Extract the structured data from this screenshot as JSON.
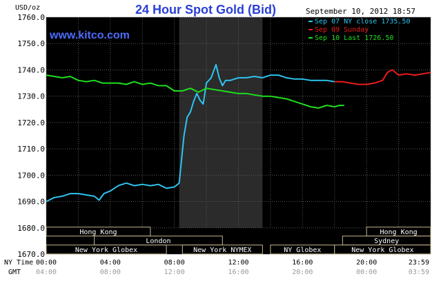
{
  "chart_data": {
    "type": "line",
    "title": "24 Hour Spot Gold (Bid)",
    "ylabel": "USD/oz",
    "brand": "www.kitco.com",
    "timestamp": "September 10, 2012 18:57",
    "ylim": [
      1670,
      1760
    ],
    "yticks": [
      "1760.0",
      "1750.0",
      "1740.0",
      "1730.0",
      "1720.0",
      "1710.0",
      "1700.0",
      "1690.0",
      "1680.0",
      "1670.0"
    ],
    "xlim": [
      0,
      24
    ],
    "x_ticks_ny": [
      "00:00",
      "04:00",
      "08:00",
      "12:00",
      "16:00",
      "20:00",
      "23:59"
    ],
    "x_ticks_gmt": [
      "04:00",
      "08:00",
      "12:00",
      "16:00",
      "20:00",
      "00:00",
      "03:59"
    ],
    "row_label_ny": "NY Time",
    "row_label_gmt": "GMT",
    "shaded_session_hours": [
      8.3,
      13.5
    ],
    "grid": true,
    "legend_position": "top-right",
    "legend": [
      {
        "label": "Sep 07 NY close 1735.50",
        "color": "#2ec4f0"
      },
      {
        "label": "Sep 09 Sunday",
        "color": "#ee1c1c"
      },
      {
        "label": "Sep 10 Last 1726.50",
        "color": "#1ee01e"
      }
    ],
    "series": [
      {
        "name": "Sep 07 NY close 1735.50",
        "color": "#2ec4f0",
        "x": [
          0,
          0.5,
          1,
          1.5,
          2,
          2.5,
          3,
          3.3,
          3.6,
          4,
          4.5,
          5,
          5.5,
          6,
          6.5,
          7,
          7.5,
          8,
          8.3,
          8.6,
          8.8,
          9,
          9.2,
          9.4,
          9.6,
          9.8,
          10,
          10.3,
          10.6,
          10.8,
          11,
          11.2,
          11.5,
          12,
          12.5,
          13,
          13.5,
          14,
          14.5,
          15,
          15.5,
          16,
          16.5,
          17,
          17.5,
          18
        ],
        "y": [
          1690,
          1691.5,
          1692,
          1693,
          1693,
          1692.5,
          1692,
          1690.5,
          1693,
          1694,
          1696,
          1697,
          1696,
          1696.5,
          1696,
          1696.5,
          1695,
          1695.5,
          1697,
          1715,
          1722,
          1724,
          1728,
          1731,
          1728.5,
          1727,
          1735,
          1737,
          1742,
          1737,
          1734,
          1736,
          1736,
          1737,
          1737,
          1737.5,
          1737,
          1738,
          1738,
          1737,
          1736.5,
          1736.5,
          1736,
          1736,
          1736,
          1735.5
        ]
      },
      {
        "name": "Sep 09 Sunday",
        "color": "#ee1c1c",
        "x": [
          18,
          18.5,
          19,
          19.5,
          20,
          20.5,
          21,
          21.3,
          21.6,
          22,
          22.5,
          23,
          23.5,
          24
        ],
        "y": [
          1735.5,
          1735.5,
          1735,
          1734.5,
          1734.5,
          1735,
          1736,
          1739,
          1740,
          1738,
          1738.5,
          1738,
          1738.5,
          1739
        ]
      },
      {
        "name": "Sep 10 Last 1726.50",
        "color": "#1ee01e",
        "x": [
          0,
          0.5,
          1,
          1.5,
          2,
          2.5,
          3,
          3.5,
          4,
          4.5,
          5,
          5.5,
          6,
          6.5,
          7,
          7.5,
          8,
          8.5,
          9,
          9.5,
          10,
          10.5,
          11,
          11.5,
          12,
          12.5,
          13,
          13.5,
          14,
          14.5,
          15,
          15.5,
          16,
          16.5,
          17,
          17.5,
          18,
          18.3,
          18.6
        ],
        "y": [
          1738,
          1737.5,
          1737,
          1737.5,
          1736,
          1735.5,
          1736,
          1735,
          1735,
          1735,
          1734.5,
          1735.5,
          1734.5,
          1735,
          1734,
          1734,
          1732,
          1732,
          1733,
          1731.5,
          1733,
          1732.5,
          1732,
          1731.5,
          1731,
          1731,
          1730.5,
          1730,
          1730,
          1729.5,
          1729,
          1728,
          1727,
          1726,
          1725.5,
          1726.5,
          1726,
          1726.5,
          1726.5
        ]
      }
    ],
    "sessions": [
      {
        "label": "Hong Kong",
        "start": 0,
        "end": 6.5,
        "row": 0
      },
      {
        "label": "London",
        "start": 3,
        "end": 11,
        "row": 1
      },
      {
        "label": "New York Globex",
        "start": 0,
        "end": 7.5,
        "row": 2
      },
      {
        "label": "New York NYMEX",
        "start": 8.5,
        "end": 13.5,
        "row": 2
      },
      {
        "label": "NY Globex",
        "start": 14,
        "end": 18,
        "row": 2
      },
      {
        "label": "Hong Kong",
        "start": 20,
        "end": 24,
        "row": 0
      },
      {
        "label": "Sydney",
        "start": 18.5,
        "end": 24,
        "row": 1
      },
      {
        "label": "New York Globex",
        "start": 18,
        "end": 24,
        "row": 2
      }
    ]
  }
}
